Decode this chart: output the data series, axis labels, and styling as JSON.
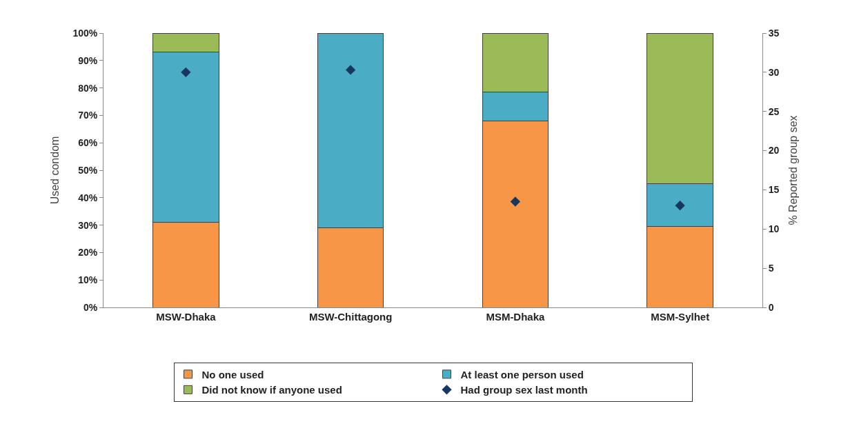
{
  "chart_data": {
    "type": "bar",
    "stacked": true,
    "ylabel": "Used condom",
    "y2label": "% Reported group sex",
    "categories": [
      "MSW-Dhaka",
      "MSW-Chittagong",
      "MSM-Dhaka",
      "MSM-Sylhet"
    ],
    "series": [
      {
        "name": "No one used",
        "color": "#f79646",
        "values": [
          31,
          29,
          68,
          29.5
        ]
      },
      {
        "name": "At least one person used",
        "color": "#4bacc6",
        "values": [
          62,
          71,
          10.5,
          15.5
        ]
      },
      {
        "name": "Did not know if anyone used",
        "color": "#9bbb59",
        "values": [
          7,
          null,
          21.5,
          55
        ]
      },
      {
        "name": "Had group sex last month",
        "type": "scatter",
        "axis": "y2",
        "marker": "diamond",
        "color": "#17375e",
        "values": [
          30,
          30.3,
          13.5,
          13
        ]
      }
    ],
    "ylim": [
      0,
      100
    ],
    "yticks": [
      {
        "value": 0,
        "label": "0%"
      },
      {
        "value": 10,
        "label": "10%"
      },
      {
        "value": 20,
        "label": "20%"
      },
      {
        "value": 30,
        "label": "30%"
      },
      {
        "value": 40,
        "label": "40%"
      },
      {
        "value": 50,
        "label": "50%"
      },
      {
        "value": 60,
        "label": "60%"
      },
      {
        "value": 70,
        "label": "70%"
      },
      {
        "value": 80,
        "label": "80%"
      },
      {
        "value": 90,
        "label": "90%"
      },
      {
        "value": 100,
        "label": "100%"
      }
    ],
    "y2lim": [
      0,
      35
    ],
    "y2ticks": [
      0,
      5,
      10,
      15,
      20,
      25,
      30,
      35
    ],
    "grid": false,
    "legend": "bottom"
  }
}
